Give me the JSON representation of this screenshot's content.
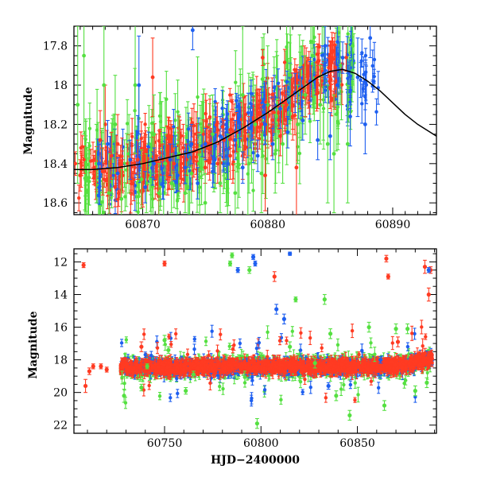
{
  "chart_data": [
    {
      "type": "scatter",
      "title": "",
      "xlabel": "",
      "ylabel": "Magnitude",
      "xlim": [
        60864.5,
        60893.5
      ],
      "ylim": [
        18.66,
        17.7
      ],
      "y_inverted": true,
      "xticks": [
        60870,
        60880,
        60890
      ],
      "yticks": [
        17.8,
        18.0,
        18.2,
        18.4,
        18.6
      ],
      "ytick_labels": [
        "17.8",
        "18",
        "18.2",
        "18.4",
        "18.6"
      ],
      "grid": false,
      "legend": "none",
      "series": [
        {
          "color": "#ff3b22",
          "kind": "points_with_errorbars",
          "values": [
            [
              60864.6,
              18.4,
              0.06
            ],
            [
              60865.0,
              18.46,
              0.08
            ],
            [
              60866.6,
              18.28,
              0.15
            ],
            [
              60866.8,
              18.44,
              0.12
            ],
            [
              60867.0,
              18.2,
              0.2
            ],
            [
              60867.2,
              18.48,
              0.15
            ],
            [
              60867.5,
              18.36,
              0.12
            ],
            [
              60867.8,
              18.52,
              0.1
            ],
            [
              60868.0,
              18.3,
              0.15
            ],
            [
              60868.4,
              18.46,
              0.08
            ],
            [
              60868.8,
              18.4,
              0.1
            ],
            [
              60869.2,
              18.5,
              0.06
            ],
            [
              60869.6,
              18.38,
              0.1
            ],
            [
              60870.0,
              18.44,
              0.06
            ],
            [
              60870.4,
              18.46,
              0.08
            ],
            [
              60870.8,
              17.96,
              0.2
            ],
            [
              60871.0,
              18.48,
              0.1
            ],
            [
              60871.6,
              18.38,
              0.08
            ],
            [
              60872.0,
              18.46,
              0.1
            ],
            [
              60872.5,
              18.4,
              0.08
            ],
            [
              60873.0,
              18.42,
              0.06
            ],
            [
              60873.5,
              18.38,
              0.08
            ],
            [
              60874.0,
              18.44,
              0.1
            ],
            [
              60874.5,
              18.34,
              0.1
            ],
            [
              60875.0,
              18.42,
              0.08
            ],
            [
              60875.5,
              18.3,
              0.08
            ],
            [
              60876.0,
              18.4,
              0.1
            ],
            [
              60876.5,
              18.28,
              0.1
            ],
            [
              60877.0,
              18.36,
              0.12
            ],
            [
              60877.5,
              18.24,
              0.1
            ],
            [
              60878.0,
              18.36,
              0.12
            ],
            [
              60878.5,
              18.26,
              0.1
            ],
            [
              60879.0,
              18.3,
              0.1
            ],
            [
              60879.5,
              18.2,
              0.1
            ],
            [
              60879.8,
              18.46,
              0.18
            ],
            [
              60880.0,
              18.22,
              0.1
            ],
            [
              60880.5,
              18.14,
              0.1
            ],
            [
              60881.0,
              18.26,
              0.1
            ],
            [
              60881.5,
              18.1,
              0.1
            ],
            [
              60882.0,
              18.16,
              0.12
            ],
            [
              60882.3,
              18.42,
              0.25
            ],
            [
              60882.6,
              18.02,
              0.1
            ],
            [
              60883.0,
              18.06,
              0.1
            ],
            [
              60883.5,
              17.98,
              0.08
            ],
            [
              60884.0,
              18.04,
              0.08
            ],
            [
              60884.5,
              17.94,
              0.06
            ],
            [
              60885.0,
              17.9,
              0.06
            ],
            [
              60885.5,
              17.98,
              0.08
            ],
            [
              60879.6,
              17.86,
              0.04
            ]
          ]
        },
        {
          "color": "#55e041",
          "kind": "points_with_errorbars",
          "values": [
            [
              60864.8,
              18.1,
              0.4
            ],
            [
              60865.3,
              17.85,
              0.4
            ],
            [
              60866.3,
              18.4,
              0.2
            ],
            [
              60866.9,
              18.0,
              0.3
            ],
            [
              60867.3,
              18.55,
              0.2
            ],
            [
              60867.8,
              18.2,
              0.25
            ],
            [
              60868.3,
              18.58,
              0.15
            ],
            [
              60868.9,
              18.35,
              0.2
            ],
            [
              60869.4,
              18.0,
              0.35
            ],
            [
              60869.9,
              18.48,
              0.15
            ],
            [
              60870.3,
              18.5,
              0.15
            ],
            [
              60870.9,
              18.25,
              0.2
            ],
            [
              60871.3,
              18.55,
              0.15
            ],
            [
              60871.8,
              18.4,
              0.15
            ],
            [
              60872.3,
              18.5,
              0.15
            ],
            [
              60872.9,
              18.35,
              0.2
            ],
            [
              60873.4,
              18.55,
              0.1
            ],
            [
              60873.9,
              18.45,
              0.15
            ],
            [
              60874.5,
              18.4,
              0.15
            ],
            [
              60875.0,
              18.6,
              0.15
            ],
            [
              60875.6,
              18.25,
              0.2
            ],
            [
              60876.2,
              18.5,
              0.15
            ],
            [
              60876.8,
              18.4,
              0.15
            ],
            [
              60877.4,
              18.55,
              0.15
            ],
            [
              60878.0,
              18.05,
              0.35
            ],
            [
              60878.5,
              18.4,
              0.15
            ],
            [
              60879.0,
              18.2,
              0.2
            ],
            [
              60879.5,
              18.45,
              0.2
            ],
            [
              60880.0,
              18.1,
              0.3
            ],
            [
              60880.6,
              18.35,
              0.2
            ],
            [
              60881.2,
              18.3,
              0.2
            ],
            [
              60881.8,
              17.95,
              0.3
            ],
            [
              60882.4,
              18.2,
              0.2
            ],
            [
              60883.0,
              18.05,
              0.2
            ],
            [
              60883.6,
              17.85,
              0.25
            ],
            [
              60884.2,
              18.1,
              0.2
            ],
            [
              60884.8,
              18.3,
              0.3
            ],
            [
              60885.3,
              18.35,
              0.3
            ],
            [
              60885.8,
              17.9,
              0.2
            ],
            [
              60886.4,
              18.3,
              0.3
            ],
            [
              60886.8,
              17.8,
              0.2
            ]
          ]
        },
        {
          "color": "#1e5ff0",
          "kind": "points_with_errorbars",
          "values": [
            [
              60866.5,
              18.4,
              0.1
            ],
            [
              60867.2,
              18.3,
              0.12
            ],
            [
              60868.0,
              18.45,
              0.08
            ],
            [
              60869.0,
              18.38,
              0.1
            ],
            [
              60869.7,
              18.0,
              0.25
            ],
            [
              60870.2,
              18.52,
              0.08
            ],
            [
              60870.9,
              18.4,
              0.08
            ],
            [
              60871.6,
              18.5,
              0.08
            ],
            [
              60872.2,
              18.38,
              0.08
            ],
            [
              60872.8,
              18.46,
              0.08
            ],
            [
              60873.4,
              18.42,
              0.08
            ],
            [
              60873.9,
              18.3,
              0.1
            ],
            [
              60874.4,
              18.5,
              0.08
            ],
            [
              60875.0,
              18.3,
              0.08
            ],
            [
              60875.6,
              18.44,
              0.08
            ],
            [
              60876.2,
              18.26,
              0.1
            ],
            [
              60876.8,
              18.4,
              0.08
            ],
            [
              60877.4,
              18.28,
              0.1
            ],
            [
              60878.0,
              18.42,
              0.08
            ],
            [
              60878.6,
              18.22,
              0.1
            ],
            [
              60879.2,
              18.36,
              0.08
            ],
            [
              60879.8,
              18.2,
              0.1
            ],
            [
              60880.4,
              18.3,
              0.08
            ],
            [
              60881.0,
              18.12,
              0.1
            ],
            [
              60881.6,
              18.24,
              0.08
            ],
            [
              60882.2,
              18.04,
              0.1
            ],
            [
              60882.8,
              18.18,
              0.1
            ],
            [
              60883.4,
              17.98,
              0.1
            ],
            [
              60884.0,
              18.28,
              0.1
            ],
            [
              60884.5,
              17.94,
              0.1
            ],
            [
              60885.0,
              18.26,
              0.12
            ],
            [
              60885.6,
              18.0,
              0.1
            ],
            [
              60886.0,
              17.86,
              0.08
            ],
            [
              60886.6,
              18.16,
              0.15
            ],
            [
              60887.2,
              17.96,
              0.2
            ],
            [
              60887.8,
              18.2,
              0.15
            ],
            [
              60888.2,
              17.76,
              0.1
            ],
            [
              60884.6,
              17.8,
              0.1
            ],
            [
              60874.0,
              17.72,
              0.1
            ]
          ]
        }
      ],
      "model_curve": {
        "color": "#000000",
        "points": [
          [
            60864.5,
            18.43
          ],
          [
            60866,
            18.43
          ],
          [
            60868,
            18.42
          ],
          [
            60870,
            18.4
          ],
          [
            60872,
            18.37
          ],
          [
            60874,
            18.34
          ],
          [
            60876,
            18.29
          ],
          [
            60878,
            18.22
          ],
          [
            60880,
            18.14
          ],
          [
            60882,
            18.05
          ],
          [
            60884,
            17.96
          ],
          [
            60885,
            17.93
          ],
          [
            60886,
            17.92
          ],
          [
            60887,
            17.94
          ],
          [
            60888,
            17.98
          ],
          [
            60889,
            18.03
          ],
          [
            60890,
            18.09
          ],
          [
            60891,
            18.15
          ],
          [
            60892,
            18.2
          ],
          [
            60893.5,
            18.26
          ]
        ]
      }
    },
    {
      "type": "scatter",
      "title": "",
      "xlabel": "HJD−2400000",
      "ylabel": "Magnitude",
      "xlim": [
        60703,
        60891
      ],
      "ylim": [
        22.5,
        11.2
      ],
      "y_inverted": true,
      "xticks": [
        60750,
        60800,
        60850
      ],
      "yticks": [
        12,
        14,
        16,
        18,
        20,
        22
      ],
      "grid": false,
      "legend": "none",
      "series": [
        {
          "color": "#ff3b22",
          "kind": "outliers_with_errorbars",
          "values": [
            [
              60708,
              12.2,
              0.15
            ],
            [
              60709,
              19.6,
              0.4
            ],
            [
              60711,
              18.7,
              0.2
            ],
            [
              60713,
              18.4,
              0.15
            ],
            [
              60717,
              18.4,
              0.15
            ],
            [
              60720,
              18.6,
              0.15
            ],
            [
              60738,
              17.2,
              0.3
            ],
            [
              60750,
              12.1,
              0.15
            ],
            [
              60776,
              18.3,
              0.3
            ],
            [
              60807,
              12.9,
              0.3
            ],
            [
              60865,
              11.8,
              0.2
            ],
            [
              60866,
              12.9,
              0.15
            ],
            [
              60871,
              16.9,
              0.3
            ],
            [
              60885,
              12.3,
              0.4
            ],
            [
              60885,
              17.6,
              0.3
            ],
            [
              60887,
              14.0,
              0.4
            ],
            [
              60888,
              12.5,
              0.2
            ]
          ]
        },
        {
          "color": "#55e041",
          "kind": "outliers_with_errorbars",
          "values": [
            [
              60729,
              20.2,
              0.4
            ],
            [
              60738,
              19.7,
              0.2
            ],
            [
              60741,
              18.4,
              0.15
            ],
            [
              60750,
              16.8,
              0.3
            ],
            [
              60752,
              17.4,
              0.2
            ],
            [
              60761,
              19.9,
              0.2
            ],
            [
              60765,
              18.9,
              0.2
            ],
            [
              60784,
              12.1,
              0.15
            ],
            [
              60785,
              11.6,
              0.15
            ],
            [
              60794,
              12.5,
              0.2
            ],
            [
              60798,
              21.9,
              0.3
            ],
            [
              60815,
              17.2,
              0.3
            ],
            [
              60818,
              14.3,
              0.15
            ],
            [
              60828,
              18.2,
              0.3
            ],
            [
              60833,
              14.3,
              0.3
            ],
            [
              60836,
              16.4,
              0.3
            ],
            [
              60839,
              20.2,
              0.3
            ],
            [
              60846,
              21.4,
              0.3
            ],
            [
              60856,
              16.0,
              0.3
            ],
            [
              60864,
              20.8,
              0.3
            ],
            [
              60870,
              16.1,
              0.3
            ],
            [
              60876,
              16.1,
              0.3
            ],
            [
              60880,
              19.9,
              0.3
            ],
            [
              60886,
              19.4,
              0.3
            ]
          ]
        },
        {
          "color": "#1e5ff0",
          "kind": "outliers_with_errorbars",
          "values": [
            [
              60788,
              12.5,
              0.15
            ],
            [
              60796,
              11.7,
              0.15
            ],
            [
              60797,
              12.1,
              0.15
            ],
            [
              60808,
              14.9,
              0.3
            ],
            [
              60812,
              15.5,
              0.3
            ],
            [
              60815,
              11.5,
              0.1
            ],
            [
              60835,
              19.6,
              0.2
            ],
            [
              60862,
              18.0,
              0.2
            ],
            [
              60887,
              12.5,
              0.15
            ]
          ]
        }
      ],
      "band": {
        "x_start": 60727,
        "x_end": 60889,
        "center_start": 18.45,
        "center_end": 18.4,
        "rise_start_x": 60862,
        "rise_end_mag": 17.95,
        "halfwidth": 0.28
      }
    }
  ]
}
